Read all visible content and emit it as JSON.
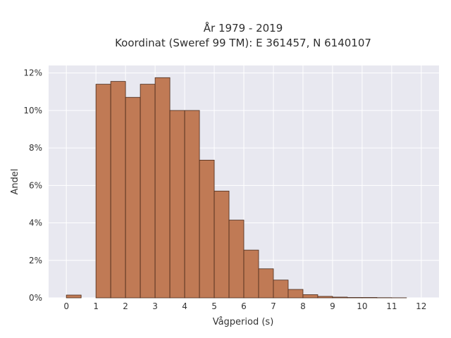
{
  "chart_data": {
    "type": "bar",
    "title": "År 1979 - 2019",
    "subtitle": "Koordinat (Sweref 99 TM): E 361457, N 6140107",
    "xlabel": "Vågperiod (s)",
    "ylabel": "Andel",
    "xlim": [
      -0.6,
      12.6
    ],
    "ylim": [
      0,
      12.4
    ],
    "grid": true,
    "bin_width": 0.5,
    "x_ticks": [
      0,
      1,
      2,
      3,
      4,
      5,
      6,
      7,
      8,
      9,
      10,
      11,
      12
    ],
    "x_tick_labels": [
      "0",
      "1",
      "2",
      "3",
      "4",
      "5",
      "6",
      "7",
      "8",
      "9",
      "10",
      "11",
      "12"
    ],
    "y_ticks": [
      0,
      2,
      4,
      6,
      8,
      10,
      12
    ],
    "y_tick_labels": [
      "0%",
      "2%",
      "4%",
      "6%",
      "8%",
      "10%",
      "12%"
    ],
    "bins": [
      0,
      0.5,
      1,
      1.5,
      2,
      2.5,
      3,
      3.5,
      4,
      4.5,
      5,
      5.5,
      6,
      6.5,
      7,
      7.5,
      8,
      8.5,
      9,
      9.5,
      10,
      10.5,
      11,
      11.5
    ],
    "values": [
      0.15,
      0,
      11.4,
      11.55,
      10.7,
      11.4,
      11.75,
      10.0,
      10.0,
      7.35,
      5.7,
      4.15,
      2.55,
      1.55,
      0.95,
      0.45,
      0.17,
      0.08,
      0.04,
      0.02,
      0.02,
      0.01,
      0.005,
      0
    ],
    "colors": {
      "bar_fill": "#c07a55",
      "bar_edge": "#4a2a1a",
      "plot_background": "#e8e8f0",
      "grid": "#ffffff"
    }
  }
}
